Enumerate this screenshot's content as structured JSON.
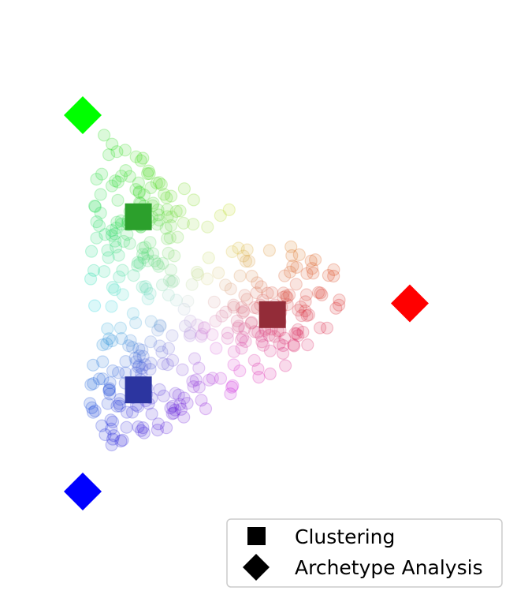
{
  "chart_data": {
    "type": "scatter",
    "title": "",
    "xlabel": "",
    "ylabel": "",
    "axes_visible": false,
    "grid": false,
    "xlim": [
      -0.05,
      1.05
    ],
    "ylim": [
      -0.02,
      1.0
    ],
    "legend": {
      "placement": "lower-right",
      "entries": [
        {
          "label": "Clustering",
          "marker": "square"
        },
        {
          "label": "Archetype Analysis",
          "marker": "diamond"
        }
      ]
    },
    "series": [
      {
        "name": "Archetype Analysis",
        "marker": "diamond",
        "points": [
          {
            "x": 0.0,
            "y": 1.0,
            "color": "#00ff00"
          },
          {
            "x": 1.0,
            "y": 0.5,
            "color": "#ff0000"
          },
          {
            "x": 0.0,
            "y": 0.0,
            "color": "#0000ff"
          }
        ]
      },
      {
        "name": "Clustering",
        "marker": "square",
        "points": [
          {
            "x": 0.17,
            "y": 0.73,
            "color": "#2ca02c"
          },
          {
            "x": 0.58,
            "y": 0.47,
            "color": "#932c38"
          },
          {
            "x": 0.17,
            "y": 0.27,
            "color": "#2c35a0"
          }
        ]
      },
      {
        "name": "data",
        "marker": "circle",
        "opacity": 0.15,
        "n_points": 400,
        "distribution": "mixture of three clusters around the cluster centers, colored by barycentric position relative to the archetypes"
      }
    ]
  }
}
